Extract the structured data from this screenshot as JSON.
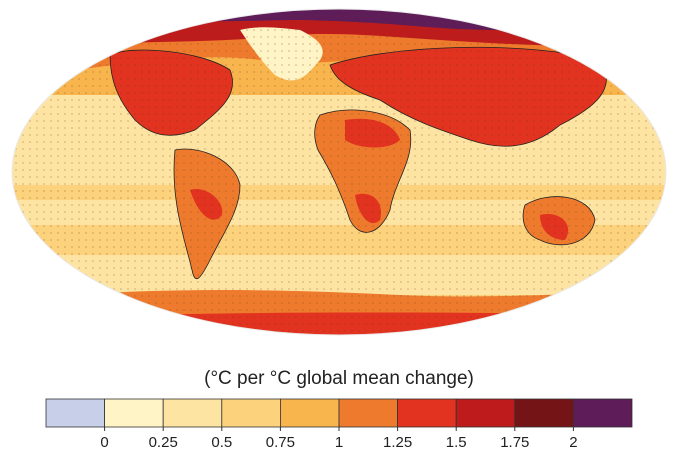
{
  "legend": {
    "title": "(°C per °C global mean change)",
    "colors": [
      "#c8cfe9",
      "#fff4c6",
      "#fde4a2",
      "#fcd27c",
      "#f9b54d",
      "#ee7b2d",
      "#e1331f",
      "#be1c1c",
      "#751417",
      "#5e1c58"
    ],
    "ticks": [
      0,
      0.25,
      0.5,
      0.75,
      1,
      1.25,
      1.5,
      1.75,
      2
    ]
  }
}
